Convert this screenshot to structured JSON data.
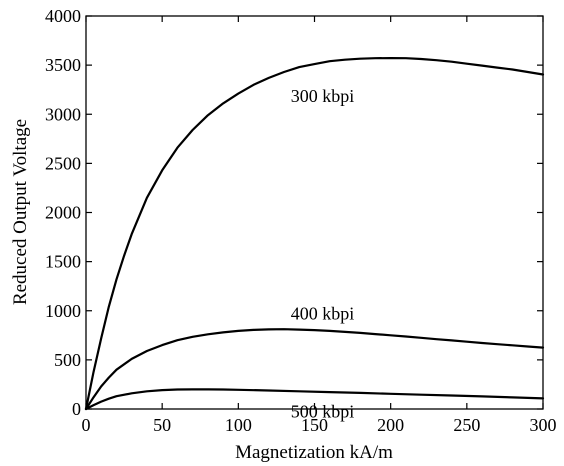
{
  "chart_data": {
    "type": "line",
    "title": "",
    "xlabel": "Magnetization kA/m",
    "ylabel": "Reduced Output Voltage",
    "xlim": [
      0,
      300
    ],
    "ylim": [
      0,
      4000
    ],
    "xticks": [
      0,
      50,
      100,
      150,
      200,
      250,
      300
    ],
    "yticks": [
      0,
      500,
      1000,
      1500,
      2000,
      2500,
      3000,
      3500,
      4000
    ],
    "grid": false,
    "legend": "none",
    "series": [
      {
        "name": "300 kbpi",
        "x": [
          0,
          5,
          10,
          15,
          20,
          25,
          30,
          40,
          50,
          60,
          70,
          80,
          90,
          100,
          110,
          120,
          130,
          140,
          150,
          160,
          170,
          180,
          190,
          200,
          210,
          220,
          230,
          240,
          250,
          260,
          270,
          280,
          290,
          300
        ],
        "y": [
          0,
          380,
          720,
          1040,
          1320,
          1560,
          1780,
          2150,
          2430,
          2660,
          2840,
          2990,
          3110,
          3210,
          3300,
          3370,
          3430,
          3480,
          3510,
          3540,
          3555,
          3565,
          3570,
          3572,
          3570,
          3562,
          3550,
          3535,
          3515,
          3495,
          3475,
          3455,
          3430,
          3405
        ]
      },
      {
        "name": "400 kbpi",
        "x": [
          0,
          5,
          10,
          15,
          20,
          30,
          40,
          50,
          60,
          70,
          80,
          90,
          100,
          110,
          120,
          130,
          140,
          150,
          160,
          170,
          180,
          190,
          200,
          210,
          220,
          230,
          240,
          250,
          260,
          270,
          280,
          290,
          300
        ],
        "y": [
          0,
          120,
          230,
          320,
          400,
          510,
          590,
          650,
          700,
          735,
          760,
          780,
          795,
          805,
          810,
          812,
          808,
          803,
          795,
          785,
          775,
          762,
          750,
          738,
          725,
          710,
          698,
          685,
          672,
          660,
          648,
          636,
          625
        ]
      },
      {
        "name": "500 kbpi",
        "x": [
          0,
          5,
          10,
          15,
          20,
          30,
          40,
          50,
          60,
          70,
          80,
          90,
          100,
          120,
          140,
          160,
          180,
          200,
          220,
          240,
          260,
          280,
          300
        ],
        "y": [
          0,
          40,
          75,
          105,
          130,
          160,
          180,
          192,
          198,
          200,
          200,
          198,
          195,
          188,
          180,
          172,
          164,
          155,
          146,
          137,
          128,
          118,
          108
        ]
      }
    ],
    "annotations": [
      {
        "text": "300 kbpi",
        "series": 0
      },
      {
        "text": "400 kbpi",
        "series": 1
      },
      {
        "text": "500 kbpi",
        "series": 2
      }
    ]
  }
}
